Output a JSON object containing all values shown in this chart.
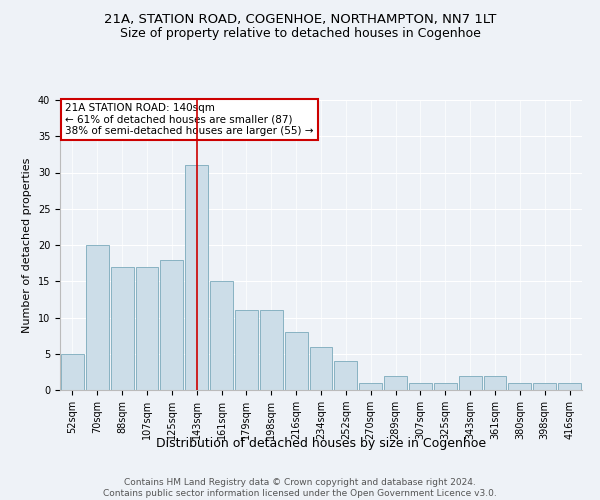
{
  "title": "21A, STATION ROAD, COGENHOE, NORTHAMPTON, NN7 1LT",
  "subtitle": "Size of property relative to detached houses in Cogenhoe",
  "xlabel": "Distribution of detached houses by size in Cogenhoe",
  "ylabel": "Number of detached properties",
  "footer_line1": "Contains HM Land Registry data © Crown copyright and database right 2024.",
  "footer_line2": "Contains public sector information licensed under the Open Government Licence v3.0.",
  "annotation_line1": "21A STATION ROAD: 140sqm",
  "annotation_line2": "← 61% of detached houses are smaller (87)",
  "annotation_line3": "38% of semi-detached houses are larger (55) →",
  "bar_labels": [
    "52sqm",
    "70sqm",
    "88sqm",
    "107sqm",
    "125sqm",
    "143sqm",
    "161sqm",
    "179sqm",
    "198sqm",
    "216sqm",
    "234sqm",
    "252sqm",
    "270sqm",
    "289sqm",
    "307sqm",
    "325sqm",
    "343sqm",
    "361sqm",
    "380sqm",
    "398sqm",
    "416sqm"
  ],
  "bar_values": [
    5,
    20,
    17,
    17,
    18,
    31,
    15,
    11,
    11,
    8,
    6,
    4,
    1,
    2,
    1,
    1,
    2,
    2,
    1,
    1,
    1
  ],
  "bar_color": "#ccdde8",
  "bar_edge_color": "#7aaabb",
  "vline_x_idx": 5,
  "vline_color": "#cc0000",
  "ylim": [
    0,
    40
  ],
  "yticks": [
    0,
    5,
    10,
    15,
    20,
    25,
    30,
    35,
    40
  ],
  "background_color": "#eef2f7",
  "plot_background": "#eef2f7",
  "annotation_box_color": "#ffffff",
  "annotation_box_edge": "#cc0000",
  "title_fontsize": 9.5,
  "subtitle_fontsize": 9,
  "xlabel_fontsize": 9,
  "ylabel_fontsize": 8,
  "tick_fontsize": 7,
  "annotation_fontsize": 7.5,
  "footer_fontsize": 6.5,
  "grid_color": "#ffffff"
}
